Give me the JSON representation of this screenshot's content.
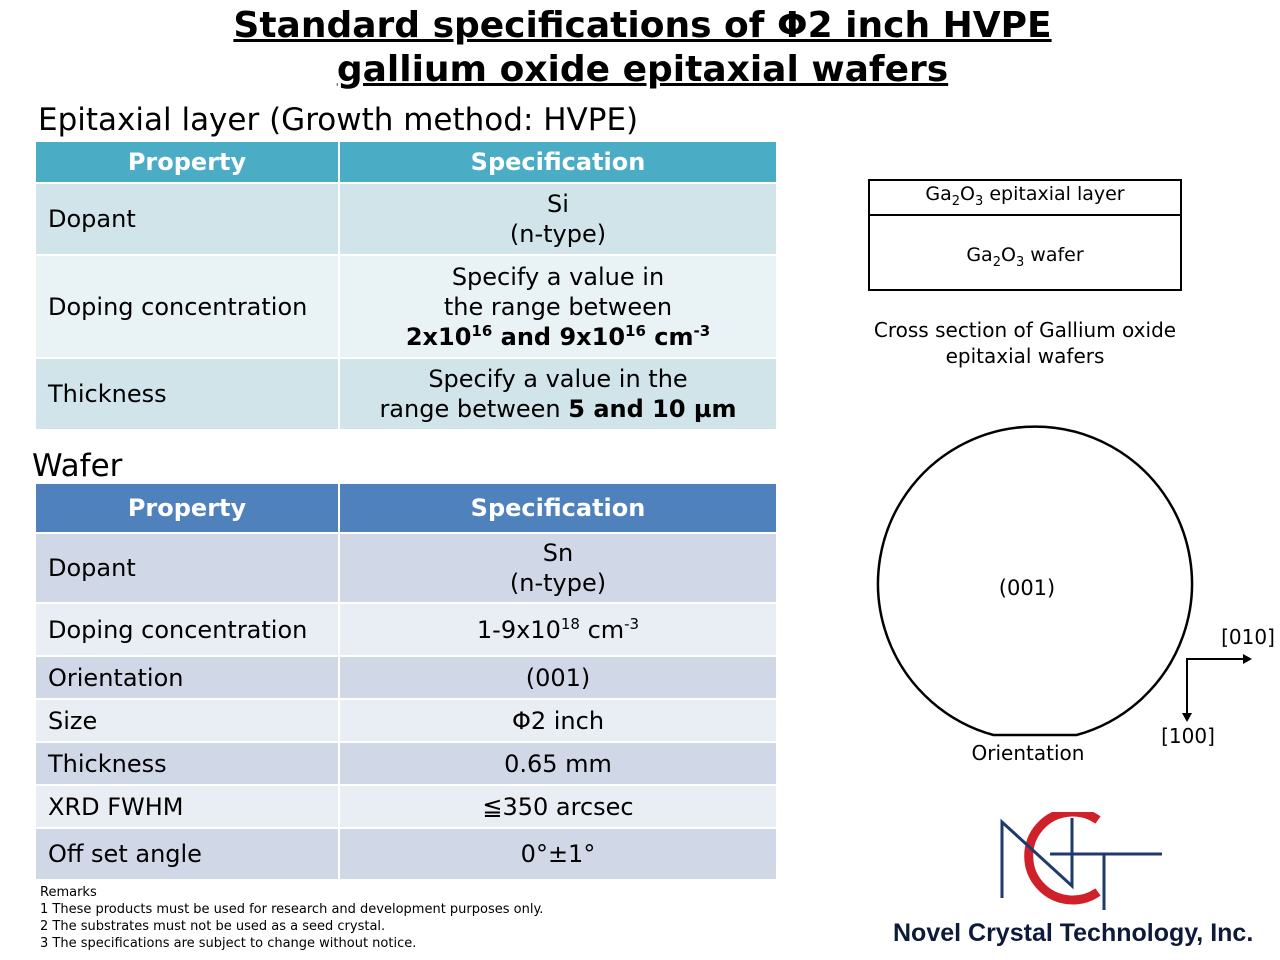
{
  "title": {
    "line1": "Standard specifications of Φ2 inch HVPE",
    "line2": "gallium oxide epitaxial wafers"
  },
  "epitaxial": {
    "heading": "Epitaxial layer (Growth method: HVPE)",
    "col_property": "Property",
    "col_specification": "Specification",
    "rows": {
      "dopant": {
        "label": "Dopant",
        "value_line1": "Si",
        "value_line2": "(n-type)"
      },
      "doping": {
        "label": "Doping concentration",
        "value_line1": "Specify a value in",
        "value_line2": "the range between",
        "value_bold_a": "2x10",
        "value_sup_a": "16",
        "value_bold_and": " and 9x10",
        "value_sup_b": "16",
        "value_bold_unit": " cm",
        "value_sup_unit": "-3"
      },
      "thickness": {
        "label": "Thickness",
        "value_line1": "Specify a value in the",
        "value_line2_plain": "range between ",
        "value_line2_bold": "5 and 10 µm"
      }
    }
  },
  "wafer": {
    "heading": "Wafer",
    "col_property": "Property",
    "col_specification": "Specification",
    "rows": {
      "dopant": {
        "label": "Dopant",
        "value_line1": "Sn",
        "value_line2": "(n-type)"
      },
      "doping": {
        "label": "Doping concentration",
        "value_base": "1-9x10",
        "value_exp": "18",
        "value_unit": " cm",
        "value_unit_exp": "-3"
      },
      "orientation": {
        "label": "Orientation",
        "value": "(001)"
      },
      "size": {
        "label": "Size",
        "value": "Φ2 inch"
      },
      "thickness": {
        "label": "Thickness",
        "value": "0.65 mm"
      },
      "xrd": {
        "label": "XRD FWHM",
        "value": "≦350 arcsec"
      },
      "offset": {
        "label": "Off set angle",
        "value": "0°±1°"
      }
    }
  },
  "remarks": {
    "title": "Remarks",
    "items": [
      "1 These products must be used for research and development purposes only.",
      "2 The substrates must not be used as a seed crystal.",
      "3 The specifications are subject to change without notice."
    ]
  },
  "cross_section": {
    "layer_top_a": "Ga",
    "layer_top_sub1": "2",
    "layer_top_b": "O",
    "layer_top_sub2": "3",
    "layer_top_c": " epitaxial layer",
    "layer_bottom_a": "Ga",
    "layer_bottom_sub1": "2",
    "layer_bottom_b": "O",
    "layer_bottom_sub2": "3",
    "layer_bottom_c": " wafer",
    "caption_line1": "Cross section of Gallium oxide",
    "caption_line2": "epitaxial wafers"
  },
  "wafer_diagram": {
    "center_label": "(001)",
    "flat_label": "Orientation",
    "axis_x_label": "[010]",
    "axis_y_label": "[100]"
  },
  "logo": {
    "company": "Novel Crystal Technology, Inc.",
    "colors": {
      "red": "#d0202a",
      "navy": "#1f3a6e"
    }
  }
}
